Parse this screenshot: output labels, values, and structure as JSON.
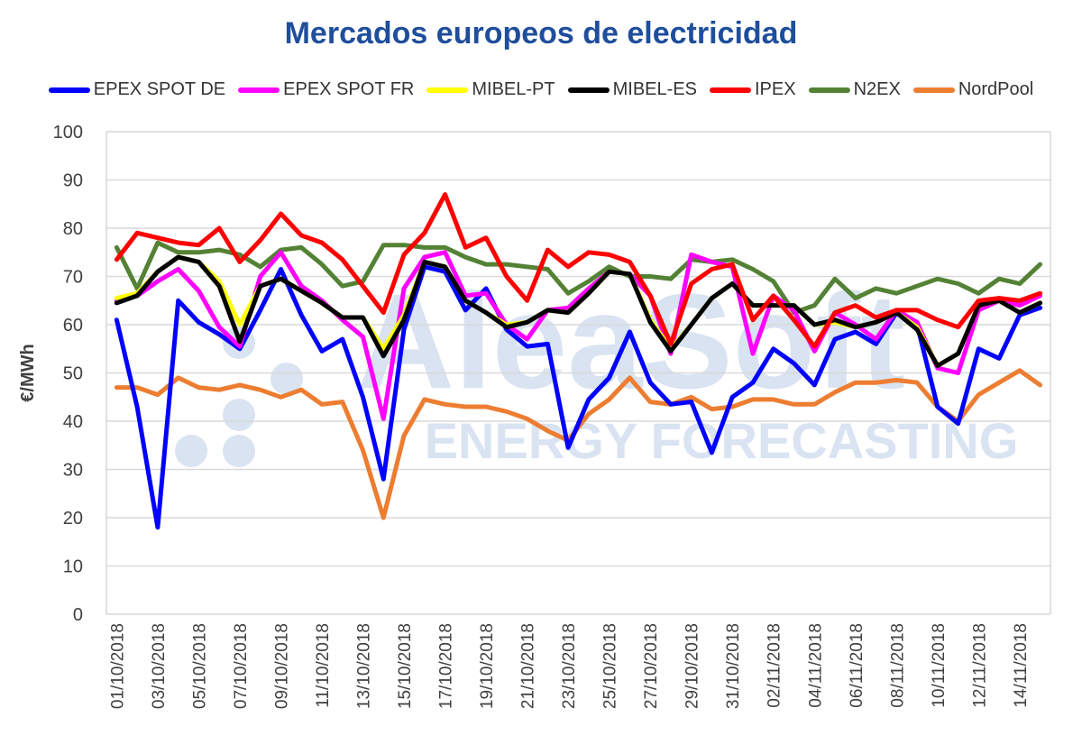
{
  "chart_data": {
    "type": "line",
    "title": "Mercados europeos de electricidad",
    "xlabel": "",
    "ylabel": "€/MWh",
    "ylim": [
      0,
      100
    ],
    "yticks": [
      0,
      10,
      20,
      30,
      40,
      50,
      60,
      70,
      80,
      90,
      100
    ],
    "grid": true,
    "legend_position": "top",
    "categories": [
      "01/10/2018",
      "02/10/2018",
      "03/10/2018",
      "04/10/2018",
      "05/10/2018",
      "06/10/2018",
      "07/10/2018",
      "08/10/2018",
      "09/10/2018",
      "10/10/2018",
      "11/10/2018",
      "12/10/2018",
      "13/10/2018",
      "14/10/2018",
      "15/10/2018",
      "16/10/2018",
      "17/10/2018",
      "18/10/2018",
      "19/10/2018",
      "20/10/2018",
      "21/10/2018",
      "22/10/2018",
      "23/10/2018",
      "24/10/2018",
      "25/10/2018",
      "26/10/2018",
      "27/10/2018",
      "28/10/2018",
      "29/10/2018",
      "30/10/2018",
      "31/10/2018",
      "01/11/2018",
      "02/11/2018",
      "03/11/2018",
      "04/11/2018",
      "05/11/2018",
      "06/11/2018",
      "07/11/2018",
      "08/11/2018",
      "09/11/2018",
      "10/11/2018",
      "11/11/2018",
      "12/11/2018",
      "13/11/2018",
      "14/11/2018",
      "15/11/2018"
    ],
    "tick_labels": [
      "01/10/2018",
      "03/10/2018",
      "05/10/2018",
      "07/10/2018",
      "09/10/2018",
      "11/10/2018",
      "13/10/2018",
      "15/10/2018",
      "17/10/2018",
      "19/10/2018",
      "21/10/2018",
      "23/10/2018",
      "25/10/2018",
      "27/10/2018",
      "29/10/2018",
      "31/10/2018",
      "02/11/2018",
      "04/11/2018",
      "06/11/2018",
      "08/11/2018",
      "10/11/2018",
      "12/11/2018",
      "14/11/2018"
    ],
    "series": [
      {
        "name": "NordPool",
        "color": "#ed7d31",
        "values": [
          47,
          47,
          45.5,
          49,
          47,
          46.5,
          47.5,
          46.5,
          45,
          46.5,
          43.5,
          44,
          34,
          20,
          37,
          44.5,
          43.5,
          43,
          43,
          42,
          40.5,
          38,
          36,
          41.5,
          44.5,
          49,
          44,
          43.5,
          45,
          42.5,
          43,
          44.5,
          44.5,
          43.5,
          43.5,
          46,
          48,
          48,
          48.5,
          48,
          43,
          40,
          45.5,
          48,
          50.5,
          47.5
        ]
      },
      {
        "name": "N2EX",
        "color": "#548235",
        "values": [
          76,
          67.5,
          77,
          75,
          75,
          75.5,
          74.5,
          72,
          75.5,
          76,
          72.5,
          68,
          69,
          76.5,
          76.5,
          76,
          76,
          74,
          72.5,
          72.5,
          72,
          71.5,
          66.5,
          69,
          72,
          70,
          70,
          69.5,
          73.5,
          73,
          73.5,
          71.5,
          69,
          62.5,
          64,
          69.5,
          65.5,
          67.5,
          66.5,
          68,
          69.5,
          68.5,
          66.5,
          69.5,
          68.5,
          72.5
        ]
      },
      {
        "name": "EPEX SPOT DE",
        "color": "#0000ff",
        "values": [
          61,
          43,
          18,
          65,
          60.5,
          58,
          55,
          63,
          71.5,
          62,
          54.5,
          57,
          45,
          28,
          59,
          72,
          71,
          63,
          67.5,
          59,
          55.5,
          56,
          34.5,
          44.5,
          49,
          58.5,
          48,
          43.5,
          44,
          33.5,
          45,
          48,
          55,
          52,
          47.5,
          57,
          58.5,
          56,
          62.5,
          60,
          43,
          39.5,
          55,
          53,
          62,
          63.5
        ]
      },
      {
        "name": "EPEX SPOT FR",
        "color": "#ff00ff",
        "values": [
          65,
          66,
          69,
          71.5,
          67,
          59.5,
          55.5,
          70,
          75,
          68,
          65,
          61,
          57.5,
          40.5,
          67.5,
          74,
          75,
          66,
          66.5,
          60,
          57,
          63,
          63.5,
          67.5,
          71,
          70.5,
          66,
          54,
          74.5,
          73,
          72,
          54,
          66,
          63,
          54.5,
          62.5,
          60,
          57,
          63,
          60.5,
          51,
          50,
          63,
          65,
          64,
          66
        ]
      },
      {
        "name": "MIBEL-PT",
        "color": "#ffff00",
        "values": [
          65.5,
          66.5,
          71,
          74,
          73,
          69,
          60,
          68,
          69.5,
          67,
          64.5,
          61.5,
          61.5,
          55,
          62,
          73,
          72,
          65,
          62.5,
          60,
          60.5,
          63,
          62.5,
          66.5,
          71,
          70.5,
          61,
          55,
          60,
          65.5,
          68.5,
          64,
          64,
          64,
          60,
          60.5,
          59.5,
          60.5,
          62.5,
          59.5,
          51.5,
          54,
          64,
          65,
          62.5,
          64.5
        ]
      },
      {
        "name": "MIBEL-ES",
        "color": "#000000",
        "values": [
          64.5,
          66,
          71,
          74,
          73,
          68,
          56.5,
          68,
          69.5,
          67,
          64.5,
          61.5,
          61.5,
          53.5,
          61,
          73,
          72,
          65,
          62.5,
          59.5,
          60.5,
          63,
          62.5,
          66.5,
          71,
          70.5,
          60.5,
          54.5,
          60,
          65.5,
          68.5,
          64,
          64,
          64,
          60,
          61,
          59.5,
          60.5,
          62.5,
          59,
          51.5,
          54,
          64,
          65,
          62.5,
          64.5
        ]
      },
      {
        "name": "IPEX",
        "color": "#ff0000",
        "values": [
          73.5,
          79,
          78,
          77,
          76.5,
          80,
          73,
          77.5,
          83,
          78.5,
          77,
          73.5,
          68,
          62.5,
          74.5,
          79,
          87,
          76,
          78,
          70,
          65,
          75.5,
          72,
          75,
          74.5,
          73,
          66,
          56,
          68.5,
          71.5,
          72.5,
          61,
          66,
          61,
          55.5,
          62.5,
          64,
          61.5,
          63,
          63,
          61,
          59.5,
          65,
          65.5,
          65,
          66.5
        ]
      }
    ],
    "legend_order": [
      "EPEX SPOT DE",
      "EPEX SPOT FR",
      "MIBEL-PT",
      "MIBEL-ES",
      "IPEX",
      "N2EX",
      "NordPool"
    ]
  },
  "watermark": {
    "brand": "AleaSoft",
    "tagline": "ENERGY FORECASTING"
  }
}
